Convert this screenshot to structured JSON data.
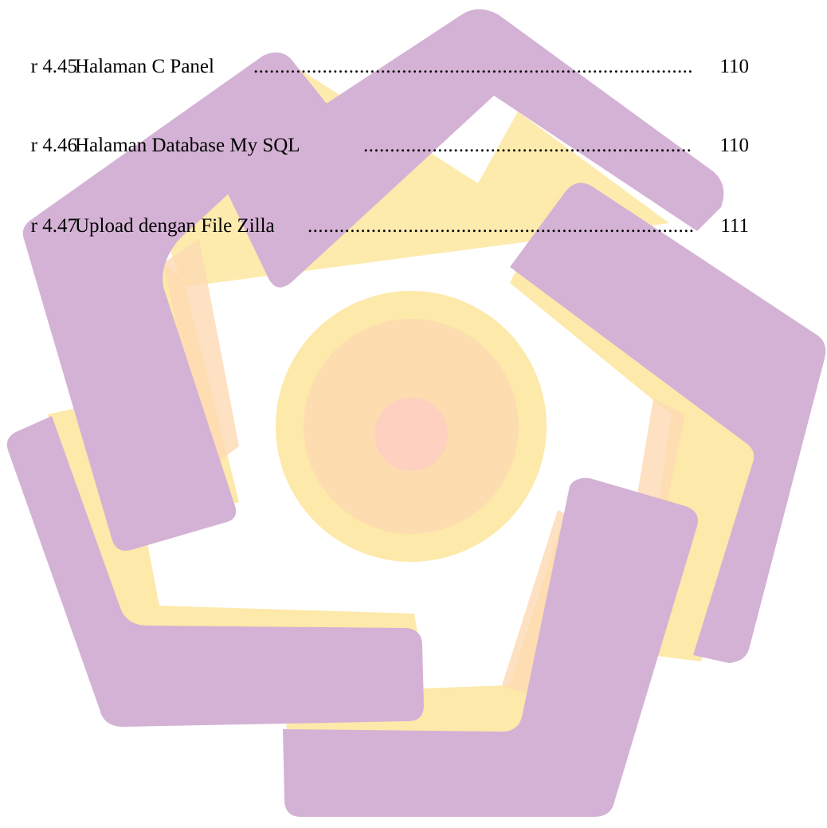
{
  "toc_entries": [
    {
      "figure": "r 4.45",
      "title": "Halaman C Panel",
      "leader": "......................................................................................................",
      "page": "110"
    },
    {
      "figure": "r 4.46",
      "title": "Halaman Database My SQL",
      "leader": "......................................................................................................",
      "page": "110"
    },
    {
      "figure": "r 4.47",
      "title": "Upload dengan File Zilla",
      "leader": "......................................................................................................",
      "page": "111"
    }
  ],
  "watermark": {
    "icon": "university-logo-watermark",
    "colors": {
      "purple": "#d4b2d5",
      "yellow": "#fde9a9",
      "peach": "#fdd9b3",
      "pink": "#fdd0c0"
    }
  }
}
